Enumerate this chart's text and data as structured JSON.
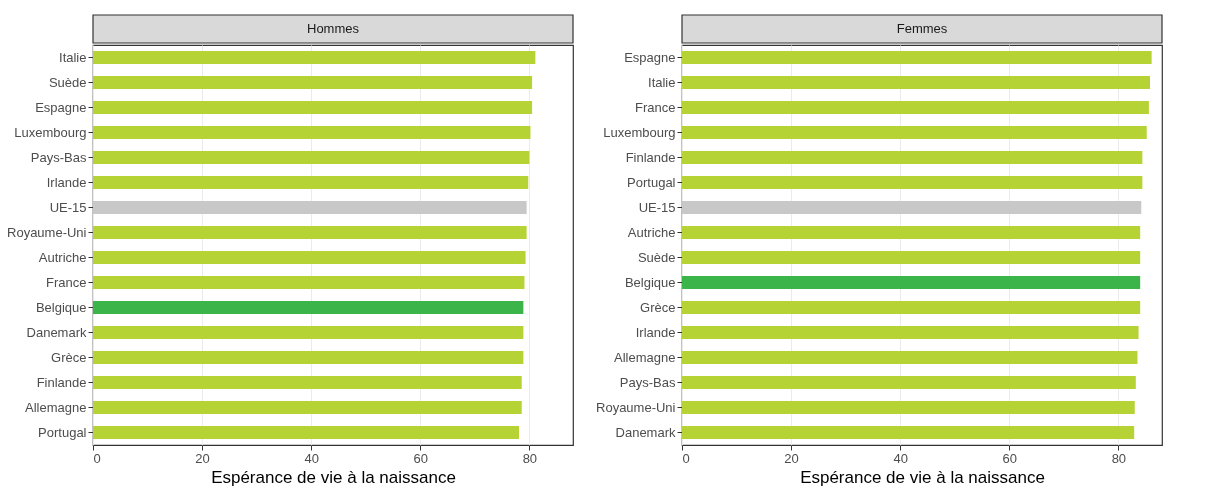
{
  "chart_data": [
    {
      "type": "bar",
      "orientation": "horizontal",
      "title": "Hommes",
      "xlabel": "Espérance de vie à la naissance",
      "categories": [
        "Italie",
        "Suède",
        "Espagne",
        "Luxembourg",
        "Pays-Bas",
        "Irlande",
        "UE-15",
        "Royaume-Uni",
        "Autriche",
        "France",
        "Belgique",
        "Danemark",
        "Grèce",
        "Finlande",
        "Allemagne",
        "Portugal"
      ],
      "values": [
        81.1,
        80.5,
        80.5,
        80.2,
        80.0,
        79.8,
        79.5,
        79.5,
        79.3,
        79.1,
        78.9,
        78.9,
        78.9,
        78.6,
        78.6,
        78.1
      ],
      "colors": [
        "#b5d334",
        "#b5d334",
        "#b5d334",
        "#b5d334",
        "#b5d334",
        "#b5d334",
        "#c8c8c8",
        "#b5d334",
        "#b5d334",
        "#b5d334",
        "#3bb54a",
        "#b5d334",
        "#b5d334",
        "#b5d334",
        "#b5d334",
        "#b5d334"
      ],
      "xlim": [
        0,
        88
      ],
      "xticks": [
        0,
        20,
        40,
        60,
        80
      ],
      "grid": "x"
    },
    {
      "type": "bar",
      "orientation": "horizontal",
      "title": "Femmes",
      "xlabel": "Espérance de vie à la naissance",
      "categories": [
        "Espagne",
        "Italie",
        "France",
        "Luxembourg",
        "Finlande",
        "Portugal",
        "UE-15",
        "Autriche",
        "Suède",
        "Belgique",
        "Grèce",
        "Irlande",
        "Allemagne",
        "Pays-Bas",
        "Royaume-Uni",
        "Danemark"
      ],
      "values": [
        86.1,
        85.8,
        85.6,
        85.2,
        84.4,
        84.4,
        84.2,
        84.0,
        84.0,
        84.0,
        84.0,
        83.7,
        83.5,
        83.2,
        83.0,
        82.9
      ],
      "colors": [
        "#b5d334",
        "#b5d334",
        "#b5d334",
        "#b5d334",
        "#b5d334",
        "#b5d334",
        "#c8c8c8",
        "#b5d334",
        "#b5d334",
        "#3bb54a",
        "#b5d334",
        "#b5d334",
        "#b5d334",
        "#b5d334",
        "#b5d334",
        "#b5d334"
      ],
      "xlim": [
        0,
        88
      ],
      "xticks": [
        0,
        20,
        40,
        60,
        80
      ],
      "grid": "x"
    }
  ]
}
